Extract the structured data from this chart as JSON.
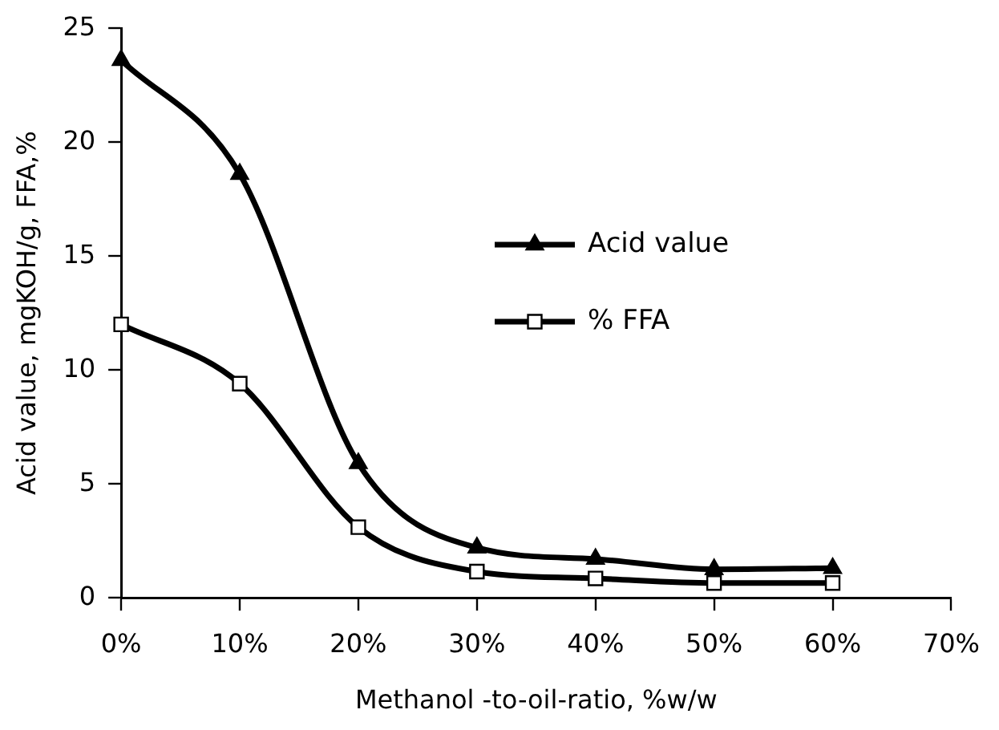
{
  "chart_data": {
    "type": "line",
    "xlabel": "Methanol -to-oil-ratio, %w/w",
    "ylabel": "Acid value, mgKOH/g, FFA,%",
    "x": [
      0,
      10,
      20,
      30,
      40,
      50,
      60
    ],
    "series": [
      {
        "name": "Acid value",
        "color": "#000000",
        "marker": "triangle",
        "values": [
          23.6,
          18.6,
          5.9,
          2.2,
          1.7,
          1.25,
          1.3
        ]
      },
      {
        "name": "% FFA",
        "color": "#000000",
        "marker": "square",
        "values": [
          12.0,
          9.4,
          3.1,
          1.15,
          0.85,
          0.65,
          0.65
        ]
      }
    ],
    "xlim": [
      0,
      70
    ],
    "xticks": [
      {
        "value": 0,
        "label": "0%"
      },
      {
        "value": 10,
        "label": "10%"
      },
      {
        "value": 20,
        "label": "20%"
      },
      {
        "value": 30,
        "label": "30%"
      },
      {
        "value": 40,
        "label": "40%"
      },
      {
        "value": 50,
        "label": "50%"
      },
      {
        "value": 60,
        "label": "60%"
      },
      {
        "value": 70,
        "label": "70%"
      }
    ],
    "ylim": [
      0,
      25
    ],
    "yticks": [
      0,
      5,
      10,
      15,
      20,
      25
    ],
    "grid": false,
    "legend": "top right",
    "line_style": "solid"
  }
}
